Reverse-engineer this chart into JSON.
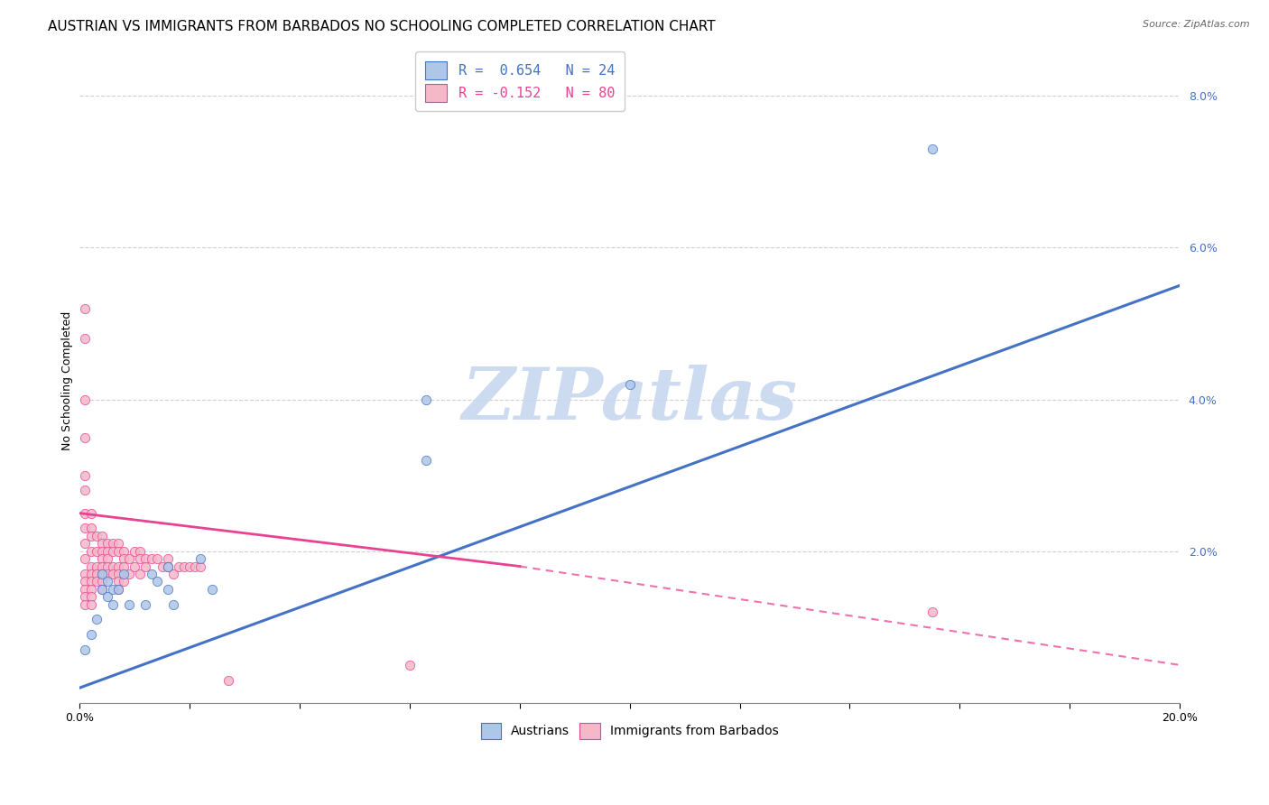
{
  "title": "AUSTRIAN VS IMMIGRANTS FROM BARBADOS NO SCHOOLING COMPLETED CORRELATION CHART",
  "source": "Source: ZipAtlas.com",
  "ylabel": "No Schooling Completed",
  "xlim": [
    0.0,
    0.2
  ],
  "ylim": [
    0.0,
    0.085
  ],
  "xticks": [
    0.0,
    0.02,
    0.04,
    0.06,
    0.08,
    0.1,
    0.12,
    0.14,
    0.16,
    0.18,
    0.2
  ],
  "yticks": [
    0.0,
    0.02,
    0.04,
    0.06,
    0.08
  ],
  "legend_entries": [
    {
      "label": "R =  0.654   N = 24",
      "facecolor": "#aec6e8",
      "edgecolor": "#4472c4",
      "text_color": "#4472c4"
    },
    {
      "label": "R = -0.152   N = 80",
      "facecolor": "#f4b8c8",
      "edgecolor": "#e84393",
      "text_color": "#e84393"
    }
  ],
  "austrians_scatter_x": [
    0.001,
    0.002,
    0.003,
    0.004,
    0.004,
    0.005,
    0.005,
    0.006,
    0.006,
    0.007,
    0.008,
    0.009,
    0.012,
    0.013,
    0.014,
    0.016,
    0.016,
    0.017,
    0.022,
    0.024,
    0.063,
    0.063,
    0.1,
    0.155
  ],
  "austrians_scatter_y": [
    0.007,
    0.009,
    0.011,
    0.015,
    0.017,
    0.014,
    0.016,
    0.013,
    0.015,
    0.015,
    0.017,
    0.013,
    0.013,
    0.017,
    0.016,
    0.015,
    0.018,
    0.013,
    0.019,
    0.015,
    0.032,
    0.04,
    0.042,
    0.073
  ],
  "barbados_scatter_x": [
    0.001,
    0.001,
    0.001,
    0.001,
    0.001,
    0.001,
    0.001,
    0.001,
    0.001,
    0.001,
    0.001,
    0.001,
    0.001,
    0.001,
    0.001,
    0.002,
    0.002,
    0.002,
    0.002,
    0.002,
    0.002,
    0.002,
    0.002,
    0.002,
    0.002,
    0.003,
    0.003,
    0.003,
    0.003,
    0.003,
    0.004,
    0.004,
    0.004,
    0.004,
    0.004,
    0.004,
    0.004,
    0.004,
    0.005,
    0.005,
    0.005,
    0.005,
    0.005,
    0.006,
    0.006,
    0.006,
    0.006,
    0.007,
    0.007,
    0.007,
    0.007,
    0.007,
    0.007,
    0.008,
    0.008,
    0.008,
    0.008,
    0.009,
    0.009,
    0.01,
    0.01,
    0.011,
    0.011,
    0.011,
    0.012,
    0.012,
    0.013,
    0.014,
    0.015,
    0.016,
    0.016,
    0.017,
    0.018,
    0.019,
    0.02,
    0.021,
    0.022,
    0.027,
    0.06,
    0.155
  ],
  "barbados_scatter_y": [
    0.052,
    0.048,
    0.04,
    0.035,
    0.03,
    0.028,
    0.025,
    0.023,
    0.021,
    0.019,
    0.017,
    0.016,
    0.015,
    0.014,
    0.013,
    0.025,
    0.023,
    0.022,
    0.02,
    0.018,
    0.017,
    0.016,
    0.015,
    0.014,
    0.013,
    0.022,
    0.02,
    0.018,
    0.017,
    0.016,
    0.022,
    0.021,
    0.02,
    0.019,
    0.018,
    0.017,
    0.016,
    0.015,
    0.021,
    0.02,
    0.019,
    0.018,
    0.017,
    0.021,
    0.02,
    0.018,
    0.017,
    0.021,
    0.02,
    0.018,
    0.017,
    0.016,
    0.015,
    0.02,
    0.019,
    0.018,
    0.016,
    0.019,
    0.017,
    0.02,
    0.018,
    0.02,
    0.019,
    0.017,
    0.019,
    0.018,
    0.019,
    0.019,
    0.018,
    0.019,
    0.018,
    0.017,
    0.018,
    0.018,
    0.018,
    0.018,
    0.018,
    0.003,
    0.005,
    0.012
  ],
  "austrians_line": {
    "x": [
      0.0,
      0.2
    ],
    "y": [
      0.002,
      0.055
    ]
  },
  "barbados_solid_line": {
    "x": [
      0.0,
      0.08
    ],
    "y": [
      0.025,
      0.018
    ]
  },
  "barbados_dashed_line": {
    "x": [
      0.08,
      0.2
    ],
    "y": [
      0.018,
      0.005
    ]
  },
  "austrians_color": "#4472c4",
  "barbados_color": "#e84393",
  "austrians_scatter_facecolor": "#aec6e8",
  "barbados_scatter_facecolor": "#f4b8c8",
  "watermark_text": "ZIPatlas",
  "watermark_color": "#c8d8f0",
  "background_color": "#ffffff",
  "grid_color": "#cccccc",
  "title_fontsize": 11,
  "axis_label_fontsize": 9,
  "tick_fontsize": 9,
  "legend_fontsize": 11,
  "bottom_legend_labels": [
    "Austrians",
    "Immigrants from Barbados"
  ]
}
